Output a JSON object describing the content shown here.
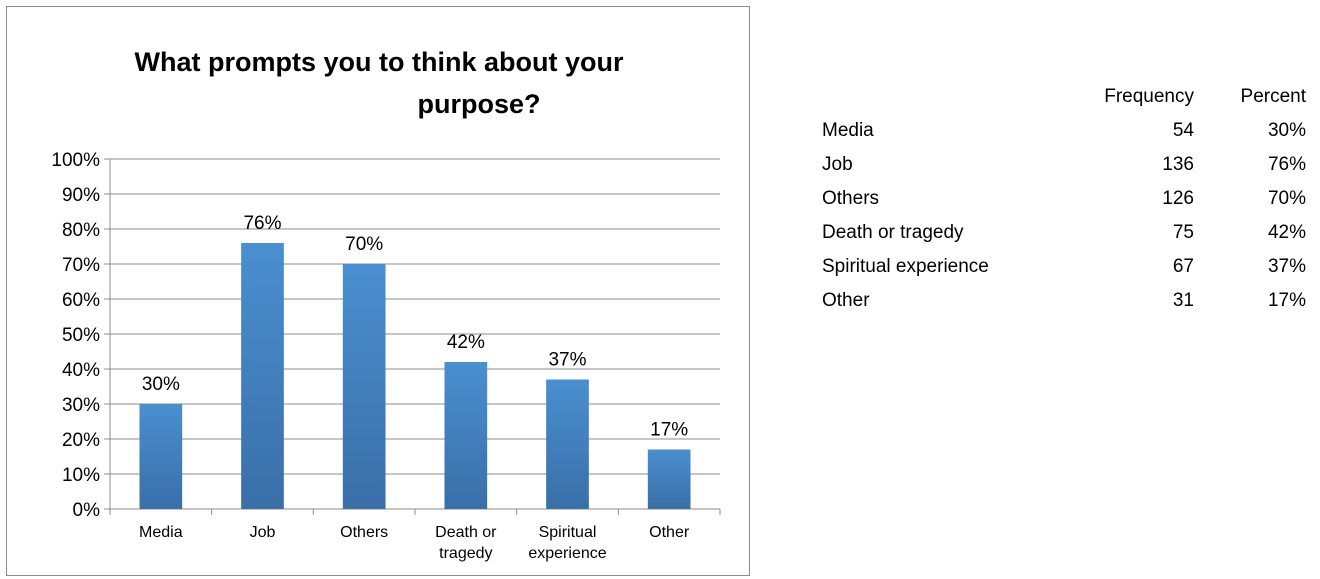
{
  "chart_data": {
    "type": "bar",
    "title_lines": [
      "What prompts you to think about your",
      "purpose?"
    ],
    "categories": [
      [
        "Media"
      ],
      [
        "Job"
      ],
      [
        "Others"
      ],
      [
        "Death or",
        "tragedy"
      ],
      [
        "Spiritual",
        "experience"
      ],
      [
        "Other"
      ]
    ],
    "values": [
      30,
      76,
      70,
      42,
      37,
      17
    ],
    "data_labels": [
      "30%",
      "76%",
      "70%",
      "42%",
      "37%",
      "17%"
    ],
    "ylim": [
      0,
      100
    ],
    "yticks": [
      "0%",
      "10%",
      "20%",
      "30%",
      "40%",
      "50%",
      "60%",
      "70%",
      "80%",
      "90%",
      "100%"
    ],
    "grid": true,
    "legend": "none",
    "bar_color": "#4a8fd0"
  },
  "table": {
    "headers": [
      "",
      "Frequency",
      "Percent"
    ],
    "rows": [
      {
        "category": "Media",
        "frequency": "54",
        "percent": "30%"
      },
      {
        "category": "Job",
        "frequency": "136",
        "percent": "76%"
      },
      {
        "category": "Others",
        "frequency": "126",
        "percent": "70%"
      },
      {
        "category": "Death or tragedy",
        "frequency": "75",
        "percent": "42%"
      },
      {
        "category": "Spiritual experience",
        "frequency": "67",
        "percent": "37%"
      },
      {
        "category": "Other",
        "frequency": "31",
        "percent": "17%"
      }
    ]
  }
}
